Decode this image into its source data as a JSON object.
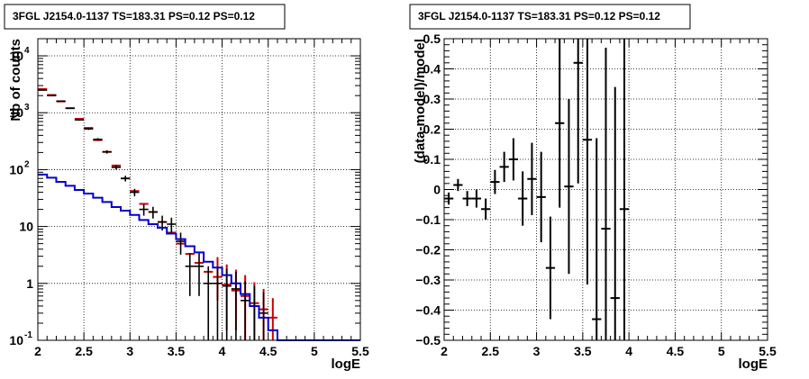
{
  "chart_data": [
    {
      "type": "histogram",
      "title": "3FGL J2154.0-1137 TS=183.31 PS=0.12 PS=0.12",
      "xlabel": "logE",
      "ylabel": "Nb of counts",
      "xlim": [
        2,
        5.5
      ],
      "ylim": [
        0.1,
        20000
      ],
      "yscale": "log",
      "grid": true,
      "x_ticks": [
        "2",
        "2.5",
        "3",
        "3.5",
        "4",
        "4.5",
        "5",
        "5.5"
      ],
      "y_ticks": [
        "10^-1",
        "1",
        "10",
        "10^2",
        "10^3",
        "10^4"
      ],
      "series": [
        {
          "color": "#cc0000",
          "style": "markers-xerr",
          "x": [
            2.05,
            2.15,
            2.25,
            2.35,
            2.45,
            2.55,
            2.65,
            2.75,
            2.85,
            2.95,
            3.05,
            3.15,
            3.25,
            3.35,
            3.45,
            3.55,
            3.65,
            3.75,
            3.85,
            3.95,
            4.05,
            4.15,
            4.25,
            4.35,
            4.45,
            4.55
          ],
          "y": [
            2600,
            2050,
            1580,
            1200,
            780,
            540,
            330,
            205,
            118,
            70,
            42,
            25,
            18,
            12,
            7.8,
            5.0,
            3.3,
            2.3,
            1.6,
            1.3,
            0.95,
            0.75,
            0.6,
            0.45,
            0.35,
            0.25
          ],
          "yerr_lo": [
            0,
            0,
            0,
            0,
            0,
            0,
            0,
            0,
            0,
            0,
            0,
            0,
            0,
            0,
            0,
            0,
            0,
            0,
            0,
            0.8,
            0.8,
            0.6,
            0.5,
            0.4,
            0.3,
            0.2
          ],
          "yerr_hi": [
            0,
            0,
            0,
            0,
            0,
            0,
            0,
            0,
            0,
            0,
            0,
            0,
            0,
            0,
            0,
            0,
            0,
            0,
            0,
            1.6,
            1.2,
            1.0,
            0.8,
            0.6,
            0.45,
            0.3
          ]
        },
        {
          "color": "#000000",
          "style": "markers-err",
          "x": [
            2.05,
            2.15,
            2.25,
            2.35,
            2.45,
            2.55,
            2.65,
            2.75,
            2.85,
            2.95,
            3.05,
            3.15,
            3.25,
            3.35,
            3.45,
            3.55,
            3.65,
            3.75,
            3.85,
            3.95,
            4.05,
            4.15,
            4.25,
            4.35,
            4.45
          ],
          "y": [
            2500,
            2000,
            1600,
            1200,
            750,
            520,
            340,
            205,
            110,
            70,
            40,
            20,
            18,
            12,
            11,
            5.5,
            2.0,
            2.0,
            1.0,
            1.0,
            0.9,
            0.8,
            0.5,
            0.4,
            0.3
          ],
          "yerr_lo": [
            50,
            45,
            40,
            35,
            28,
            23,
            18,
            14,
            10,
            8,
            6,
            4.5,
            4.2,
            3.5,
            3.3,
            2.3,
            1.4,
            1.4,
            0.9,
            0.9,
            0.85,
            0.75,
            0.48,
            0.38,
            0.28
          ],
          "yerr_hi": [
            50,
            45,
            40,
            35,
            28,
            23,
            18,
            14,
            10,
            8,
            6,
            4.5,
            4.2,
            3.5,
            3.3,
            2.3,
            1.4,
            1.4,
            1.0,
            1.0,
            0.9,
            0.8,
            0.6,
            0.5,
            0.4
          ]
        },
        {
          "color": "#0000cc",
          "style": "step",
          "x": [
            2.05,
            2.15,
            2.25,
            2.35,
            2.45,
            2.55,
            2.65,
            2.75,
            2.85,
            2.95,
            3.05,
            3.15,
            3.25,
            3.35,
            3.45,
            3.55,
            3.65,
            3.75,
            3.85,
            3.95,
            4.05,
            4.15,
            4.25,
            4.35,
            4.45,
            4.55,
            4.65,
            4.75,
            4.85,
            4.95,
            5.05,
            5.15,
            5.25,
            5.35,
            5.45
          ],
          "y": [
            82,
            72,
            61,
            52,
            44,
            38,
            32,
            27,
            22,
            19,
            16,
            13,
            11,
            9.5,
            7.5,
            6.0,
            4.5,
            3.5,
            2.4,
            1.9,
            1.4,
            1.0,
            0.65,
            0.4,
            0.25,
            0.15,
            0.1,
            0.1,
            0.1,
            0.1,
            0.1,
            0.1,
            0.1,
            0.1,
            0.1
          ]
        }
      ]
    },
    {
      "type": "scatter",
      "title": "3FGL J2154.0-1137 TS=183.31 PS=0.12 PS=0.12",
      "xlabel": "logE",
      "ylabel": "(data-model)/model",
      "xlim": [
        2,
        5.5
      ],
      "ylim": [
        -0.5,
        0.5
      ],
      "grid": true,
      "x_ticks": [
        "2",
        "2.5",
        "3",
        "3.5",
        "4",
        "4.5",
        "5",
        "5.5"
      ],
      "y_ticks": [
        "−0.5",
        "−0.4",
        "−0.3",
        "−0.2",
        "−0.1",
        "0",
        "0.1",
        "0.2",
        "0.3",
        "0.4",
        "0.5"
      ],
      "series": [
        {
          "color": "#000000",
          "x": [
            2.05,
            2.15,
            2.25,
            2.35,
            2.45,
            2.55,
            2.65,
            2.75,
            2.85,
            2.95,
            3.05,
            3.15,
            3.25,
            3.35,
            3.45,
            3.55,
            3.65,
            3.75,
            3.85,
            3.95
          ],
          "y": [
            -0.03,
            0.015,
            -0.03,
            -0.03,
            -0.065,
            0.025,
            0.075,
            0.1,
            -0.03,
            0.035,
            -0.025,
            -0.26,
            0.22,
            0.01,
            0.42,
            0.165,
            -0.43,
            -0.13,
            -0.36,
            -0.065
          ],
          "yerr": [
            0.02,
            0.02,
            0.025,
            0.03,
            0.035,
            0.04,
            0.05,
            0.07,
            0.09,
            0.12,
            0.15,
            0.17,
            0.28,
            0.29,
            0.4,
            0.48,
            0.6,
            0.6,
            0.7,
            0.65
          ]
        }
      ]
    }
  ]
}
